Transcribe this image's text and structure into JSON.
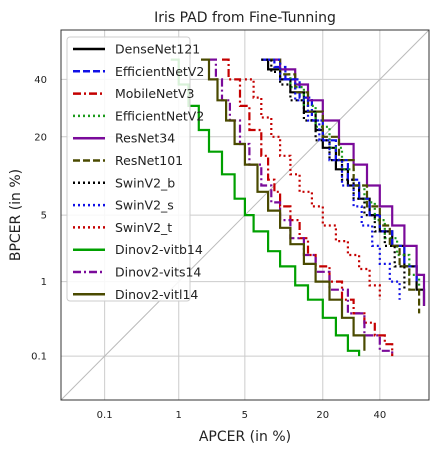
{
  "chart_data": {
    "type": "line",
    "title": "Iris PAD from Fine-Tunning",
    "xlabel": "APCER (in %)",
    "ylabel": "BPCER (in %)",
    "xscale": "probit",
    "yscale": "probit",
    "xlim": [
      0.02,
      60
    ],
    "ylim": [
      0.02,
      60
    ],
    "xticks": [
      0.1,
      1,
      5,
      20,
      40
    ],
    "xtick_labels": [
      "0.1",
      "1",
      "5",
      "20",
      "40"
    ],
    "yticks": [
      0.1,
      1,
      5,
      20,
      40
    ],
    "ytick_labels": [
      "0.1",
      "1",
      "5",
      "20",
      "40"
    ],
    "grid": true,
    "diagonal_reference": true,
    "legend_position": "top-left",
    "series": [
      {
        "name": "DenseNet121",
        "color": "#000000",
        "dash": "solid",
        "x": [
          7,
          8,
          10,
          12,
          15,
          18,
          20,
          24,
          28,
          32,
          36,
          40,
          45,
          50,
          55,
          58
        ],
        "y": [
          48,
          44,
          40,
          35,
          28,
          22,
          17,
          12,
          9,
          7,
          5,
          3.5,
          2.5,
          1.5,
          0.8,
          0.5
        ]
      },
      {
        "name": "EfficientNetV2",
        "color": "#1010e6",
        "dash": "dashed",
        "x": [
          7,
          9,
          11,
          14,
          17,
          20,
          24,
          28,
          32,
          36,
          40,
          45,
          50,
          55
        ],
        "y": [
          48,
          45,
          40,
          33,
          25,
          19,
          14,
          10,
          7,
          5,
          3.5,
          2.5,
          1.5,
          1
        ]
      },
      {
        "name": "MobileNetV3",
        "color": "#c40000",
        "dash": "dashdot",
        "x": [
          3,
          3.5,
          4.5,
          5.5,
          7,
          8,
          9,
          10,
          12,
          14,
          16,
          18,
          22,
          26,
          30,
          34,
          38,
          42,
          45
        ],
        "y": [
          48,
          40,
          30,
          22,
          15,
          10,
          8,
          6,
          4.5,
          3,
          2,
          1.5,
          1,
          0.6,
          0.4,
          0.3,
          0.2,
          0.15,
          0.1
        ]
      },
      {
        "name": "EfficientNetV2",
        "color": "#1a9a1a",
        "dash": "dotted",
        "x": [
          8,
          10,
          12,
          15,
          18,
          22,
          26,
          30,
          34,
          38,
          42,
          47,
          52,
          56
        ],
        "y": [
          48,
          42,
          37,
          30,
          23,
          17,
          12,
          9,
          6.5,
          4.5,
          3,
          2,
          1.2,
          0.8
        ]
      },
      {
        "name": "ResNet34",
        "color": "#7a0a9a",
        "dash": "solid",
        "x": [
          8,
          10,
          13,
          16,
          20,
          25,
          30,
          35,
          40,
          45,
          50,
          55,
          58
        ],
        "y": [
          48,
          44,
          38,
          32,
          25,
          18,
          13,
          9,
          6,
          4,
          2.5,
          1.2,
          0.5
        ]
      },
      {
        "name": "ResNet101",
        "color": "#4a4a00",
        "dash": "dashed",
        "x": [
          8,
          10,
          13,
          16,
          20,
          25,
          30,
          35,
          40,
          44,
          48,
          52,
          56
        ],
        "y": [
          48,
          42,
          35,
          28,
          20,
          14,
          9,
          6,
          4,
          2.5,
          1.5,
          0.8,
          0.4
        ]
      },
      {
        "name": "SwinV2_b",
        "color": "#000000",
        "dash": "dotted",
        "x": [
          7,
          8.5,
          10,
          12,
          15,
          18,
          22,
          26,
          30,
          34,
          38,
          42,
          46,
          50
        ],
        "y": [
          48,
          43,
          38,
          32,
          25,
          19,
          14,
          10,
          7,
          5,
          3.5,
          2.5,
          1.5,
          0.8
        ]
      },
      {
        "name": "SwinV2_s",
        "color": "#1010e6",
        "dash": "dotted",
        "x": [
          8,
          10,
          13,
          16,
          19,
          22,
          26,
          30,
          33,
          37,
          40,
          44,
          48
        ],
        "y": [
          48,
          40,
          32,
          25,
          19,
          14,
          9,
          6,
          4,
          2.5,
          1.6,
          1,
          0.6
        ]
      },
      {
        "name": "SwinV2_t",
        "color": "#c40000",
        "dash": "dotted",
        "x": [
          5,
          6,
          7,
          8.5,
          10,
          12,
          14,
          17,
          20,
          24,
          28,
          32,
          36,
          40
        ],
        "y": [
          40,
          33,
          26,
          20,
          15,
          11,
          8,
          6,
          4,
          2.8,
          2,
          1.4,
          0.9,
          0.6
        ]
      },
      {
        "name": "Dinov2-vitb14",
        "color": "#00a000",
        "dash": "solid",
        "x": [
          0.8,
          1,
          1.3,
          1.7,
          2.2,
          3,
          4,
          5,
          6,
          8,
          10,
          13,
          16,
          20,
          24,
          28,
          32
        ],
        "y": [
          48,
          38,
          30,
          22,
          16,
          11,
          7,
          5,
          3.5,
          2.2,
          1.5,
          0.9,
          0.6,
          0.35,
          0.2,
          0.12,
          0.1
        ]
      },
      {
        "name": "Dinov2-vits14",
        "color": "#7a0a9a",
        "dash": "dashdot",
        "x": [
          2.2,
          2.6,
          3,
          3.6,
          4.5,
          5.5,
          7,
          8.5,
          10,
          12,
          15,
          18,
          22,
          28,
          34,
          40,
          45
        ],
        "y": [
          48,
          40,
          32,
          25,
          18,
          13,
          9,
          6.5,
          4.5,
          3,
          2,
          1.3,
          0.8,
          0.4,
          0.2,
          0.12,
          0.1
        ]
      },
      {
        "name": "Dinov2-vitl14",
        "color": "#4a4a00",
        "dash": "solid",
        "x": [
          1.8,
          2.2,
          2.7,
          3.3,
          4,
          5,
          6.5,
          8,
          10,
          12,
          15,
          18,
          22,
          26,
          30,
          34
        ],
        "y": [
          48,
          40,
          32,
          25,
          18,
          13,
          8,
          5.5,
          3.8,
          2.6,
          1.6,
          1,
          0.6,
          0.35,
          0.2,
          0.12
        ]
      }
    ]
  }
}
